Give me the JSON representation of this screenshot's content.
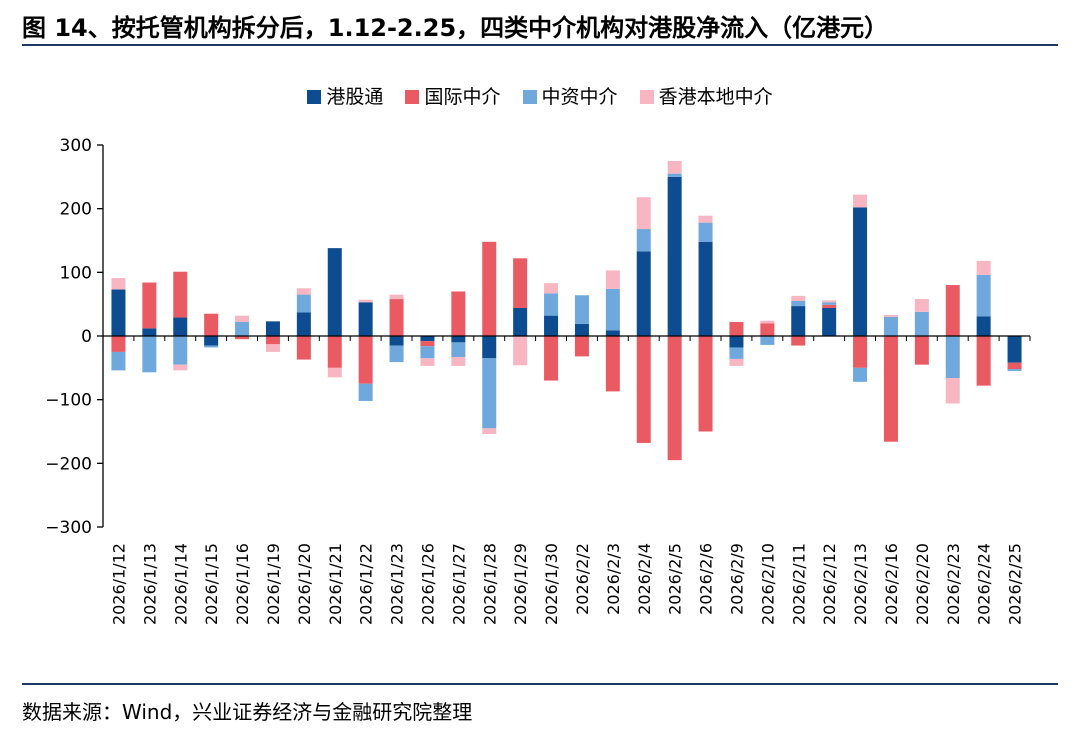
{
  "title": "图 14、按托管机构拆分后，1.12-2.25，四类中介机构对港股净流入（亿港元）",
  "source": "数据来源：Wind，兴业证券经济与金融研究院整理",
  "chart_data": {
    "type": "bar",
    "stacked": true,
    "title": "四类中介机构对港股净流入（亿港元）",
    "xlabel": "",
    "ylabel": "",
    "ylim": [
      -300,
      300
    ],
    "yticks": [
      300,
      200,
      100,
      0,
      -100,
      -200,
      -300
    ],
    "ytick_labels": [
      "300",
      "200",
      "100",
      "0",
      "−100",
      "−200",
      "−300"
    ],
    "legend_position": "top-center",
    "categories": [
      "2026/1/12",
      "2026/1/13",
      "2026/1/14",
      "2026/1/15",
      "2026/1/16",
      "2026/1/19",
      "2026/1/20",
      "2026/1/21",
      "2026/1/22",
      "2026/1/23",
      "2026/1/26",
      "2026/1/27",
      "2026/1/28",
      "2026/1/29",
      "2026/1/30",
      "2026/2/2",
      "2026/2/3",
      "2026/2/4",
      "2026/2/5",
      "2026/2/6",
      "2026/2/9",
      "2026/2/10",
      "2026/2/11",
      "2026/2/12",
      "2026/2/13",
      "2026/2/16",
      "2026/2/20",
      "2026/2/23",
      "2026/2/24",
      "2026/2/25"
    ],
    "series": [
      {
        "name": "港股通",
        "color": "#0e4c92",
        "values": [
          73,
          12,
          29,
          -15,
          0,
          23,
          37,
          138,
          53,
          -15,
          -8,
          -10,
          -35,
          44,
          32,
          19,
          9,
          133,
          250,
          148,
          -18,
          0,
          47,
          44,
          202,
          0,
          0,
          0,
          31,
          -42
        ]
      },
      {
        "name": "国际中介",
        "color": "#e95a63",
        "values": [
          -25,
          72,
          72,
          35,
          -5,
          -13,
          -37,
          -50,
          -75,
          58,
          -8,
          70,
          148,
          78,
          -70,
          -32,
          -87,
          -168,
          -195,
          -150,
          22,
          20,
          -15,
          5,
          -50,
          -166,
          -45,
          80,
          -78,
          -10
        ]
      },
      {
        "name": "中资中介",
        "color": "#6fa8dc",
        "values": [
          -29,
          -57,
          -45,
          -3,
          22,
          0,
          28,
          0,
          -27,
          -26,
          -19,
          -23,
          -110,
          0,
          35,
          45,
          65,
          35,
          5,
          30,
          -18,
          -14,
          8,
          4,
          -22,
          30,
          38,
          -66,
          65,
          -3
        ]
      },
      {
        "name": "香港本地中介",
        "color": "#f7b6c2",
        "values": [
          18,
          0,
          -9,
          0,
          10,
          -12,
          10,
          -15,
          4,
          7,
          -12,
          -14,
          -9,
          -46,
          16,
          0,
          29,
          50,
          20,
          11,
          -11,
          4,
          8,
          3,
          20,
          3,
          20,
          -40,
          22,
          0
        ]
      }
    ]
  }
}
